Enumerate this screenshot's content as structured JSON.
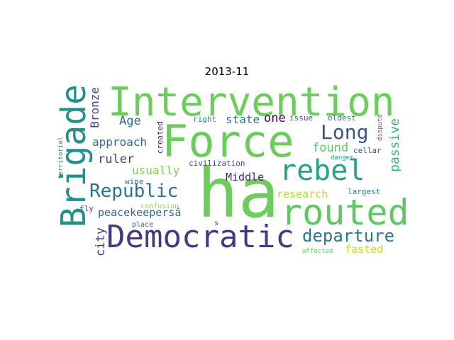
{
  "title": "2013-11",
  "words": [
    {
      "text": "Intervention",
      "color": "#6ccd5a"
    },
    {
      "text": "Force",
      "color": "#6ccd5a"
    },
    {
      "text": "ha",
      "color": "#6ccd5a"
    },
    {
      "text": "Brigade",
      "color": "#21918c"
    },
    {
      "text": "rebel",
      "color": "#25a186"
    },
    {
      "text": "routed",
      "color": "#5ec962"
    },
    {
      "text": "Democratic",
      "color": "#443983"
    },
    {
      "text": "Long",
      "color": "#3b528b"
    },
    {
      "text": "Republic",
      "color": "#2c728e"
    },
    {
      "text": "departure",
      "color": "#2a788e"
    },
    {
      "text": "approach",
      "color": "#31688e"
    },
    {
      "text": "Age",
      "color": "#31688e"
    },
    {
      "text": "ruler",
      "color": "#414487"
    },
    {
      "text": "usually",
      "color": "#7ad151"
    },
    {
      "text": "found",
      "color": "#5ec962"
    },
    {
      "text": "passive",
      "color": "#35b779"
    },
    {
      "text": "Bronze",
      "color": "#3e4a89"
    },
    {
      "text": "state",
      "color": "#2a788e"
    },
    {
      "text": "one",
      "color": "#440154"
    },
    {
      "text": "Middle",
      "color": "#482475"
    },
    {
      "text": "research",
      "color": "#b5de2b"
    },
    {
      "text": "fasted",
      "color": "#bddf26"
    },
    {
      "text": "peacekeepersâ",
      "color": "#33638d"
    },
    {
      "text": "city",
      "color": "#46337e"
    },
    {
      "text": "right",
      "color": "#21918c"
    },
    {
      "text": "issue",
      "color": "#3b528b"
    },
    {
      "text": "oldest",
      "color": "#2c728e"
    },
    {
      "text": "created",
      "color": "#482878"
    },
    {
      "text": "civilization",
      "color": "#404688"
    },
    {
      "text": "cellar",
      "color": "#3e4989"
    },
    {
      "text": "wine",
      "color": "#2d708e"
    },
    {
      "text": "largest",
      "color": "#26828e"
    },
    {
      "text": "dispute",
      "color": "#7e3f8f"
    },
    {
      "text": "danger",
      "color": "#1fa188"
    },
    {
      "text": "territorial",
      "color": "#2a788e"
    },
    {
      "text": "fly",
      "color": "#3e4a89"
    },
    {
      "text": "confusion",
      "color": "#8fd744"
    },
    {
      "text": "place",
      "color": "#31688e"
    },
    {
      "text": "s",
      "color": "#3b528b"
    },
    {
      "text": "affected",
      "color": "#5ec962"
    }
  ]
}
